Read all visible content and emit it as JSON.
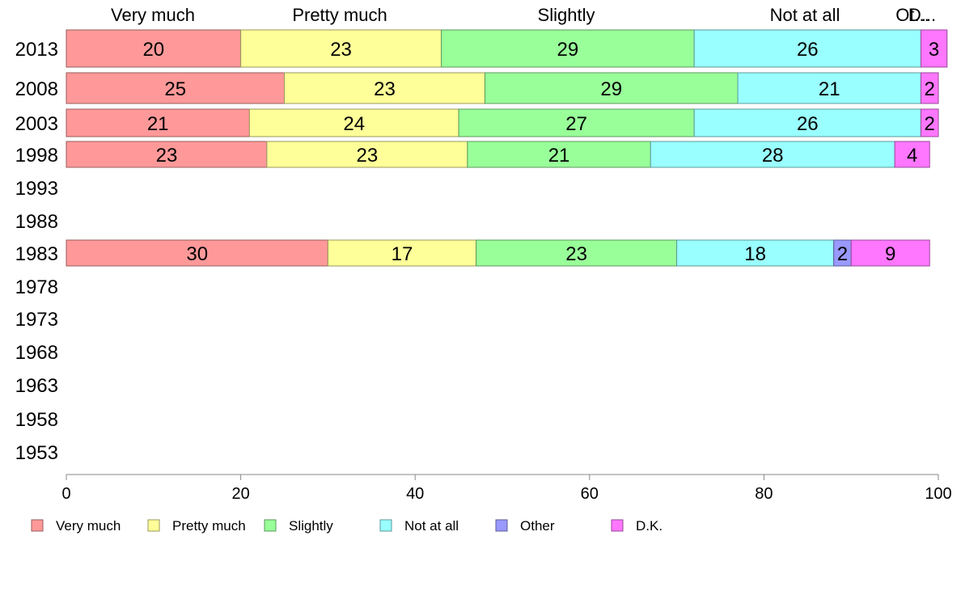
{
  "chart_data": {
    "type": "bar",
    "orientation": "horizontal",
    "stacked": true,
    "categories": [
      "2013",
      "2008",
      "2003",
      "1998",
      "1993",
      "1988",
      "1983",
      "1978",
      "1973",
      "1968",
      "1963",
      "1958",
      "1953"
    ],
    "series": [
      {
        "name": "Very much",
        "color": "#FF9999",
        "values": [
          20,
          25,
          21,
          23,
          null,
          null,
          30,
          null,
          null,
          null,
          null,
          null,
          null
        ]
      },
      {
        "name": "Pretty much",
        "color": "#FFFF99",
        "values": [
          23,
          23,
          24,
          23,
          null,
          null,
          17,
          null,
          null,
          null,
          null,
          null,
          null
        ]
      },
      {
        "name": "Slightly",
        "color": "#99FF99",
        "values": [
          29,
          29,
          27,
          21,
          null,
          null,
          23,
          null,
          null,
          null,
          null,
          null,
          null
        ]
      },
      {
        "name": "Not at all",
        "color": "#99FFFF",
        "values": [
          26,
          21,
          26,
          28,
          null,
          null,
          18,
          null,
          null,
          null,
          null,
          null,
          null
        ]
      },
      {
        "name": "Other",
        "color": "#9999FF",
        "values": [
          null,
          null,
          null,
          null,
          null,
          null,
          2,
          null,
          null,
          null,
          null,
          null,
          null
        ]
      },
      {
        "name": "D.K.",
        "color": "#FF77FF",
        "values": [
          3,
          2,
          2,
          4,
          null,
          null,
          9,
          null,
          null,
          null,
          null,
          null,
          null
        ]
      }
    ],
    "top_labels": [
      "Very much",
      "Pretty much",
      "Slightly",
      "Not at all",
      "Ot...",
      "D..."
    ],
    "xlim": [
      0,
      100
    ],
    "xticks": [
      0,
      20,
      40,
      60,
      80,
      100
    ],
    "grid": false,
    "legend_position": "bottom"
  }
}
